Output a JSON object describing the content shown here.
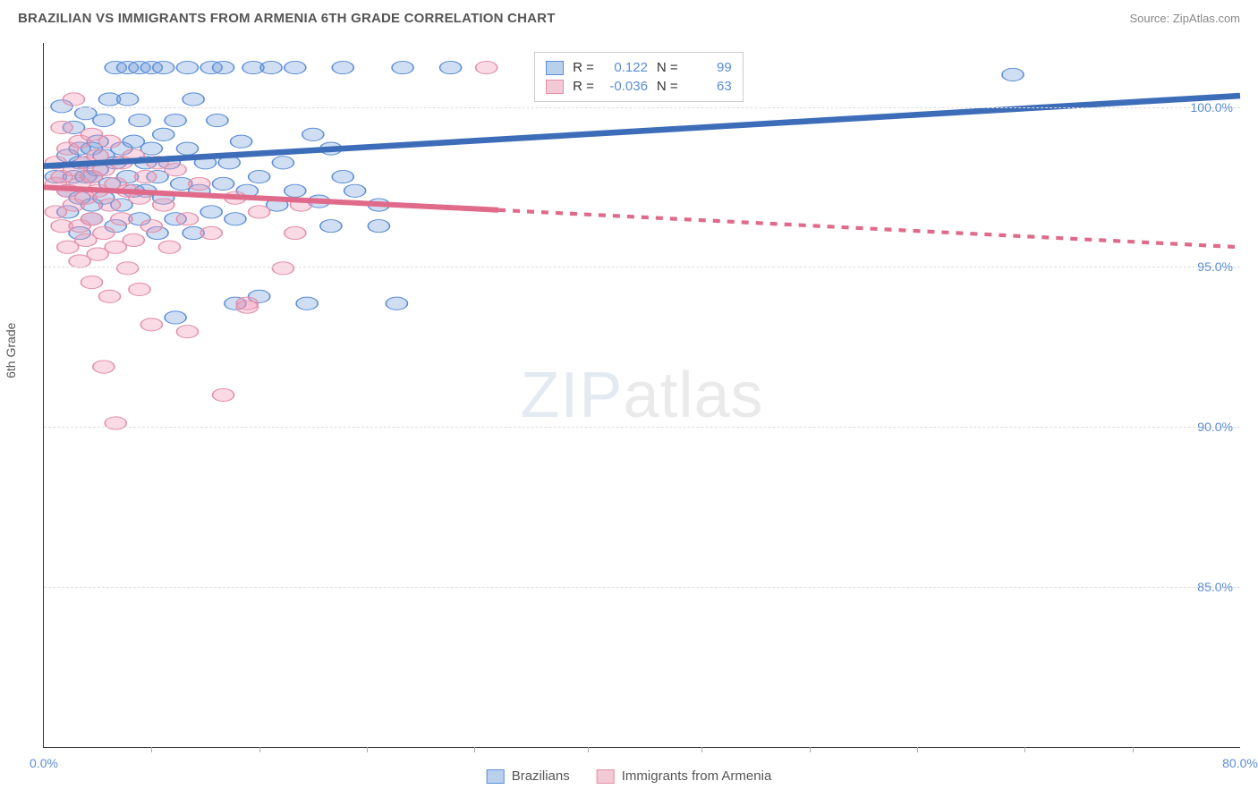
{
  "title": "BRAZILIAN VS IMMIGRANTS FROM ARMENIA 6TH GRADE CORRELATION CHART",
  "source": "Source: ZipAtlas.com",
  "ylabel": "6th Grade",
  "watermark_bold": "ZIP",
  "watermark_thin": "atlas",
  "chart": {
    "type": "scatter",
    "xlim": [
      0,
      80
    ],
    "ylim": [
      80,
      102
    ],
    "xtick_labels": [
      "0.0%",
      "80.0%"
    ],
    "xtick_positions_pct": [
      0,
      100
    ],
    "xtick_minor_positions_pct": [
      9,
      18,
      27,
      36,
      45.5,
      55,
      64,
      73,
      82,
      91
    ],
    "ytick_labels": [
      "85.0%",
      "90.0%",
      "95.0%",
      "100.0%"
    ],
    "ytick_positions_pct": [
      77.3,
      54.5,
      31.8,
      9.1
    ],
    "grid_color": "#dddddd",
    "background_color": "#ffffff",
    "axis_color": "#333333",
    "series": [
      {
        "name": "Brazilians",
        "color_fill": "rgba(120,160,220,0.35)",
        "color_stroke": "#5b8dd6",
        "swatch_fill": "#b9d0ec",
        "swatch_stroke": "#5b8dd6",
        "marker_radius": 9,
        "R": "0.122",
        "N": "99",
        "regression": {
          "x1_pct": 0,
          "y1_pct": 17.5,
          "x2_pct": 100,
          "y2_pct": 7.5,
          "dashed_from_pct": null,
          "stroke": "#3d6db8",
          "width": 2.2
        },
        "points_pct": [
          [
            1,
            19
          ],
          [
            1.5,
            9
          ],
          [
            2,
            21
          ],
          [
            2,
            16
          ],
          [
            2,
            24
          ],
          [
            2.5,
            12
          ],
          [
            2.5,
            19
          ],
          [
            3,
            17
          ],
          [
            3,
            15
          ],
          [
            3,
            22
          ],
          [
            3,
            27
          ],
          [
            3.5,
            19
          ],
          [
            3.5,
            10
          ],
          [
            4,
            15
          ],
          [
            4,
            19
          ],
          [
            4,
            23
          ],
          [
            4,
            25
          ],
          [
            4.5,
            14
          ],
          [
            4.5,
            18
          ],
          [
            5,
            11
          ],
          [
            5,
            22
          ],
          [
            5,
            16
          ],
          [
            5.5,
            8
          ],
          [
            5.5,
            20
          ],
          [
            6,
            17
          ],
          [
            6,
            26
          ],
          [
            6,
            3.5
          ],
          [
            6.5,
            15
          ],
          [
            6.5,
            23
          ],
          [
            7,
            8
          ],
          [
            7,
            19
          ],
          [
            7,
            3.5
          ],
          [
            7.5,
            21
          ],
          [
            7.5,
            14
          ],
          [
            8,
            11
          ],
          [
            8,
            25
          ],
          [
            8,
            3.5
          ],
          [
            8.5,
            17
          ],
          [
            8.5,
            21
          ],
          [
            9,
            15
          ],
          [
            9,
            3.5
          ],
          [
            9.5,
            19
          ],
          [
            9.5,
            27
          ],
          [
            10,
            13
          ],
          [
            10,
            22
          ],
          [
            10,
            3.5
          ],
          [
            10.5,
            17
          ],
          [
            11,
            11
          ],
          [
            11,
            25
          ],
          [
            11,
            39
          ],
          [
            11.5,
            20
          ],
          [
            12,
            15
          ],
          [
            12,
            3.5
          ],
          [
            12.5,
            8
          ],
          [
            12.5,
            27
          ],
          [
            13,
            21
          ],
          [
            13.5,
            17
          ],
          [
            14,
            24
          ],
          [
            14,
            3.5
          ],
          [
            14.5,
            11
          ],
          [
            15,
            20
          ],
          [
            15,
            3.5
          ],
          [
            15.5,
            17
          ],
          [
            16,
            25
          ],
          [
            16,
            37
          ],
          [
            16.5,
            14
          ],
          [
            17,
            21
          ],
          [
            17.5,
            3.5
          ],
          [
            18,
            36
          ],
          [
            18,
            19
          ],
          [
            19,
            3.5
          ],
          [
            19.5,
            23
          ],
          [
            20,
            17
          ],
          [
            21,
            21
          ],
          [
            21,
            3.5
          ],
          [
            22,
            37
          ],
          [
            22.5,
            13
          ],
          [
            23,
            22.5
          ],
          [
            24,
            15
          ],
          [
            24,
            26
          ],
          [
            25,
            19
          ],
          [
            25,
            3.5
          ],
          [
            26,
            21
          ],
          [
            28,
            23
          ],
          [
            28,
            26
          ],
          [
            29.5,
            37
          ],
          [
            30,
            3.5
          ],
          [
            34,
            3.5
          ],
          [
            44,
            3.5
          ],
          [
            81,
            4.5
          ]
        ]
      },
      {
        "name": "Immigrants from Armenia",
        "color_fill": "rgba(240,150,180,0.35)",
        "color_stroke": "#e38fa8",
        "swatch_fill": "#f3c9d6",
        "swatch_stroke": "#e38fa8",
        "marker_radius": 9,
        "R": "-0.036",
        "N": "63",
        "regression": {
          "x1_pct": 0,
          "y1_pct": 20.5,
          "x2_pct": 100,
          "y2_pct": 29,
          "dashed_from_pct": 38,
          "stroke": "#e06a8a",
          "width": 2.0
        },
        "points_pct": [
          [
            1,
            17
          ],
          [
            1,
            20
          ],
          [
            1,
            24
          ],
          [
            1.5,
            12
          ],
          [
            1.5,
            19
          ],
          [
            1.5,
            26
          ],
          [
            2,
            15
          ],
          [
            2,
            21
          ],
          [
            2,
            29
          ],
          [
            2.5,
            18
          ],
          [
            2.5,
            23
          ],
          [
            2.5,
            8
          ],
          [
            3,
            14
          ],
          [
            3,
            20
          ],
          [
            3,
            26
          ],
          [
            3,
            31
          ],
          [
            3.5,
            17
          ],
          [
            3.5,
            22
          ],
          [
            3.5,
            28
          ],
          [
            4,
            13
          ],
          [
            4,
            19
          ],
          [
            4,
            25
          ],
          [
            4,
            34
          ],
          [
            4.5,
            16
          ],
          [
            4.5,
            21
          ],
          [
            4.5,
            30
          ],
          [
            5,
            18
          ],
          [
            5,
            27
          ],
          [
            5,
            46
          ],
          [
            5.5,
            14
          ],
          [
            5.5,
            23
          ],
          [
            5.5,
            36
          ],
          [
            6,
            20
          ],
          [
            6,
            29
          ],
          [
            6,
            54
          ],
          [
            6.5,
            17
          ],
          [
            6.5,
            25
          ],
          [
            7,
            21
          ],
          [
            7,
            32
          ],
          [
            7.5,
            16
          ],
          [
            7.5,
            28
          ],
          [
            8,
            22
          ],
          [
            8,
            35
          ],
          [
            8.5,
            19
          ],
          [
            9,
            26
          ],
          [
            9,
            40
          ],
          [
            9.5,
            17
          ],
          [
            10,
            23
          ],
          [
            10.5,
            29
          ],
          [
            11,
            18
          ],
          [
            12,
            25
          ],
          [
            12,
            41
          ],
          [
            13,
            20
          ],
          [
            14,
            27
          ],
          [
            15,
            50
          ],
          [
            16,
            22
          ],
          [
            17,
            37
          ],
          [
            17,
            37.5
          ],
          [
            18,
            24
          ],
          [
            20,
            32
          ],
          [
            21,
            27
          ],
          [
            21.5,
            23
          ],
          [
            37,
            3.5
          ]
        ]
      }
    ]
  },
  "legend": {
    "items": [
      {
        "label": "Brazilians",
        "fill": "#b9d0ec",
        "stroke": "#5b8dd6"
      },
      {
        "label": "Immigrants from Armenia",
        "fill": "#f3c9d6",
        "stroke": "#e38fa8"
      }
    ]
  },
  "stats_labels": {
    "R": "R =",
    "N": "N ="
  }
}
